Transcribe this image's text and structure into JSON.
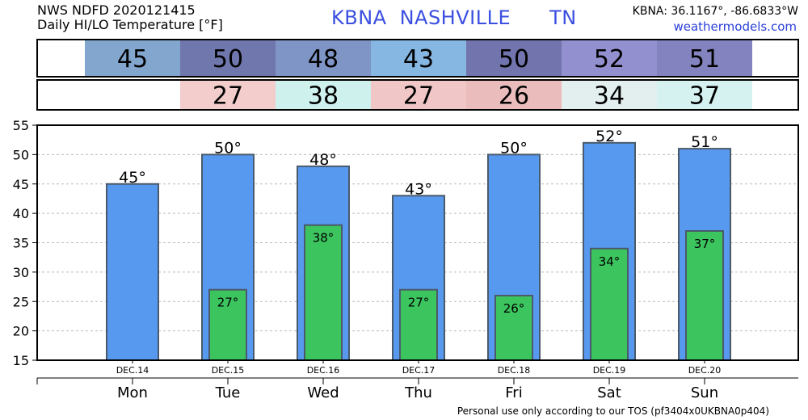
{
  "header": {
    "source_line": "NWS NDFD 2020121415",
    "product_line": "Daily HI/LO Temperature [°F]",
    "station_id": "KBNA",
    "city": "NASHVILLE",
    "state": "TN",
    "coordinates": "KBNA: 36.1167°, -86.6833°W",
    "website": "weathermodels.com"
  },
  "footer": {
    "tos": "Personal use only according to our TOS (pf3404x0UKBNA0p404)"
  },
  "colors": {
    "high_bar": "#5899f0",
    "low_bar": "#3cc45e",
    "bar_outline": "#4a5a6a",
    "grid": "#bbbbbb"
  },
  "chart_data": {
    "type": "bar",
    "categories": [
      "Mon",
      "Tue",
      "Wed",
      "Thu",
      "Fri",
      "Sat",
      "Sun"
    ],
    "dates": [
      "DEC.14",
      "DEC.15",
      "DEC.16",
      "DEC.17",
      "DEC.18",
      "DEC.19",
      "DEC.20"
    ],
    "series": [
      {
        "values": [
          45,
          50,
          48,
          43,
          50,
          52,
          51
        ],
        "labels": [
          "45°",
          "50°",
          "48°",
          "43°",
          "50°",
          "52°",
          "51°"
        ]
      },
      {
        "values": [
          null,
          27,
          38,
          27,
          26,
          34,
          37
        ],
        "labels": [
          "",
          "27°",
          "38°",
          "27°",
          "26°",
          "34°",
          "37°"
        ]
      }
    ],
    "high_table": {
      "values": [
        "45",
        "50",
        "48",
        "43",
        "50",
        "52",
        "51"
      ],
      "colors": [
        "#83a6cf",
        "#6f77ad",
        "#7f95c5",
        "#86b6e2",
        "#7274ad",
        "#9390cf",
        "#8384bf"
      ]
    },
    "low_table": {
      "values": [
        "",
        "27",
        "38",
        "27",
        "26",
        "34",
        "37"
      ],
      "colors": [
        "#ffffff",
        "#f3cccc",
        "#cff1ee",
        "#f1c6c6",
        "#ebbcbc",
        "#e3eeee",
        "#d5f1f0"
      ]
    },
    "ylim": [
      15,
      55
    ],
    "yticks": [
      15,
      20,
      25,
      30,
      35,
      40,
      45,
      50,
      55
    ],
    "grid": true
  }
}
